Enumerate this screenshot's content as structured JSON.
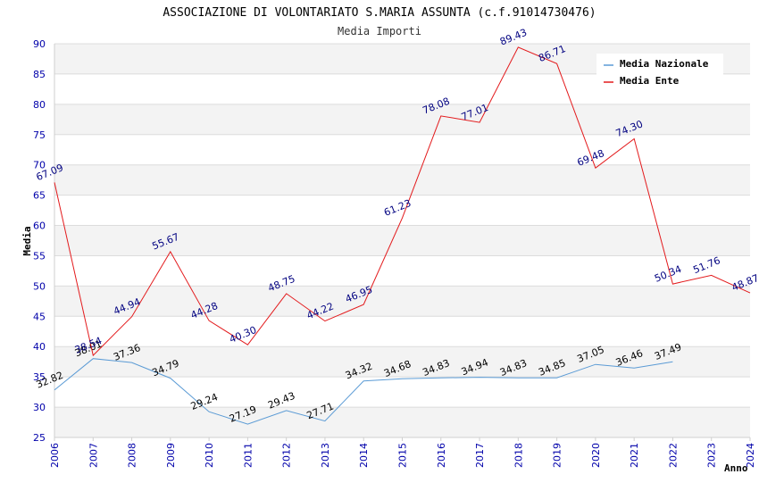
{
  "chart_data": {
    "type": "line",
    "title": "ASSOCIAZIONE DI VOLONTARIATO S.MARIA ASSUNTA (c.f.91014730476)",
    "subtitle": "Media Importi",
    "xlabel": "Anno",
    "ylabel": "Media",
    "ylim": [
      25,
      90
    ],
    "yticks": [
      25,
      30,
      35,
      40,
      45,
      50,
      55,
      60,
      65,
      70,
      75,
      80,
      85,
      90
    ],
    "categories": [
      "2006",
      "2007",
      "2008",
      "2009",
      "2010",
      "2011",
      "2012",
      "2013",
      "2014",
      "2015",
      "2016",
      "2017",
      "2018",
      "2019",
      "2020",
      "2021",
      "2022",
      "2023",
      "2024"
    ],
    "grid": true,
    "legend_position": "top-right",
    "series": [
      {
        "name": "Media Nazionale",
        "color": "#5b9bd5",
        "label_color": "#000000",
        "values": [
          32.82,
          38.01,
          37.36,
          34.79,
          29.24,
          27.19,
          29.43,
          27.71,
          34.32,
          34.68,
          34.83,
          34.94,
          34.83,
          34.85,
          37.05,
          36.46,
          37.49,
          null,
          null
        ],
        "labels": [
          "32.82",
          "38.01",
          "37.36",
          "34.79",
          "29.24",
          "27.19",
          "29.43",
          "27.71",
          "34.32",
          "34.68",
          "34.83",
          "34.94",
          "34.83",
          "34.85",
          "37.05",
          "36.46",
          "37.49",
          "",
          ""
        ]
      },
      {
        "name": "Media Ente",
        "color": "#e31a1c",
        "label_color": "#000080",
        "values": [
          67.09,
          38.54,
          44.94,
          55.67,
          44.28,
          40.3,
          48.75,
          44.22,
          46.95,
          61.23,
          78.08,
          77.01,
          89.43,
          86.71,
          69.48,
          74.3,
          50.34,
          51.76,
          48.87
        ],
        "labels": [
          "67.09",
          "38.54",
          "44.94",
          "55.67",
          "44.28",
          "40.30",
          "48.75",
          "44.22",
          "46.95",
          "61.23",
          "78.08",
          "77.01",
          "89.43",
          "86.71",
          "69.48",
          "74.30",
          "50.34",
          "51.76",
          "48.87"
        ]
      }
    ]
  }
}
